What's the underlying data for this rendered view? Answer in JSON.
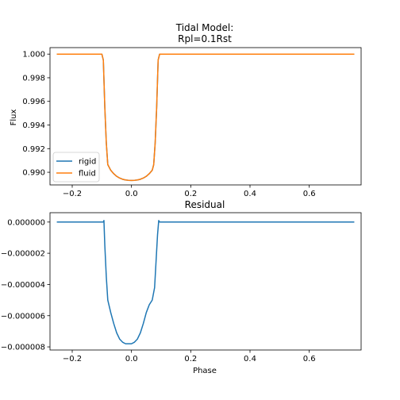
{
  "chart_data": [
    {
      "type": "line",
      "title_lines": [
        "Tidal Model:",
        "Rpl=0.1Rst"
      ],
      "xlabel": "",
      "ylabel": "Flux",
      "xlim": [
        -0.275,
        0.775
      ],
      "ylim": [
        0.98893,
        1.00055
      ],
      "xticks": [
        -0.2,
        0.0,
        0.2,
        0.4,
        0.6
      ],
      "xtick_labels": [
        "−0.2",
        "0.0",
        "0.2",
        "0.4",
        "0.6"
      ],
      "yticks": [
        0.99,
        0.992,
        0.994,
        0.996,
        0.998,
        1.0
      ],
      "ytick_labels": [
        "0.990",
        "0.992",
        "0.994",
        "0.996",
        "0.998",
        "1.000"
      ],
      "legend": {
        "placement": "lower-left"
      },
      "series": [
        {
          "name": "rigid",
          "color": "#1f77b4",
          "x": [
            -0.25,
            -0.1,
            -0.095,
            -0.09,
            -0.085,
            -0.08,
            -0.07,
            -0.06,
            -0.05,
            -0.04,
            -0.03,
            -0.02,
            -0.01,
            0.0,
            0.01,
            0.02,
            0.03,
            0.04,
            0.05,
            0.06,
            0.07,
            0.075,
            0.08,
            0.085,
            0.09,
            0.095,
            0.75
          ],
          "y": [
            1.0,
            1.0,
            0.9995,
            0.9955,
            0.9925,
            0.99065,
            0.99017,
            0.98988,
            0.98966,
            0.98951,
            0.98941,
            0.98935,
            0.98932,
            0.98931,
            0.98932,
            0.98935,
            0.98941,
            0.98951,
            0.98966,
            0.98988,
            0.99017,
            0.99065,
            0.9925,
            0.9955,
            0.9995,
            1.0,
            1.0
          ]
        },
        {
          "name": "fluid",
          "color": "#ff7f0e",
          "x": [
            -0.25,
            -0.1,
            -0.095,
            -0.09,
            -0.085,
            -0.08,
            -0.07,
            -0.06,
            -0.05,
            -0.04,
            -0.03,
            -0.02,
            -0.01,
            0.0,
            0.01,
            0.02,
            0.03,
            0.04,
            0.05,
            0.06,
            0.07,
            0.075,
            0.08,
            0.085,
            0.09,
            0.095,
            0.75
          ],
          "y": [
            1.0,
            1.0,
            0.9995,
            0.9955,
            0.9925,
            0.99065,
            0.99017,
            0.98988,
            0.98966,
            0.98951,
            0.98941,
            0.98935,
            0.98932,
            0.98931,
            0.98932,
            0.98935,
            0.98941,
            0.98951,
            0.98966,
            0.98988,
            0.99017,
            0.99065,
            0.9925,
            0.9955,
            0.9995,
            1.0,
            1.0
          ]
        }
      ]
    },
    {
      "type": "line",
      "title_lines": [
        "Residual"
      ],
      "xlabel": "Phase",
      "ylabel": "",
      "xlim": [
        -0.275,
        0.775
      ],
      "ylim": [
        -8.2e-06,
        6e-07
      ],
      "xticks": [
        -0.2,
        0.0,
        0.2,
        0.4,
        0.6
      ],
      "xtick_labels": [
        "−0.2",
        "0.0",
        "0.2",
        "0.4",
        "0.6"
      ],
      "yticks": [
        0.0,
        -2e-06,
        -4e-06,
        -6e-06,
        -8e-06
      ],
      "ytick_labels": [
        "0.000000",
        "−0.000002",
        "−0.000004",
        "−0.000006",
        "−0.000008"
      ],
      "series": [
        {
          "color": "#1f77b4",
          "x": [
            -0.25,
            -0.095,
            -0.093,
            -0.09,
            -0.085,
            -0.08,
            -0.07,
            -0.06,
            -0.05,
            -0.04,
            -0.03,
            -0.02,
            -0.01,
            0.0,
            0.01,
            0.02,
            0.03,
            0.04,
            0.05,
            0.06,
            0.07,
            0.078,
            0.083,
            0.088,
            0.092,
            0.095,
            0.75
          ],
          "y": [
            0.0,
            0.0,
            1e-07,
            -1.5e-06,
            -3.5e-06,
            -5e-06,
            -5.8e-06,
            -6.5e-06,
            -7.1e-06,
            -7.5e-06,
            -7.7e-06,
            -7.8e-06,
            -7.8e-06,
            -7.8e-06,
            -7.7e-06,
            -7.5e-06,
            -7.1e-06,
            -6.5e-06,
            -5.8e-06,
            -5.3e-06,
            -5e-06,
            -4.2e-06,
            -2.5e-06,
            -8e-07,
            1e-07,
            0.0,
            0.0
          ]
        }
      ]
    }
  ]
}
